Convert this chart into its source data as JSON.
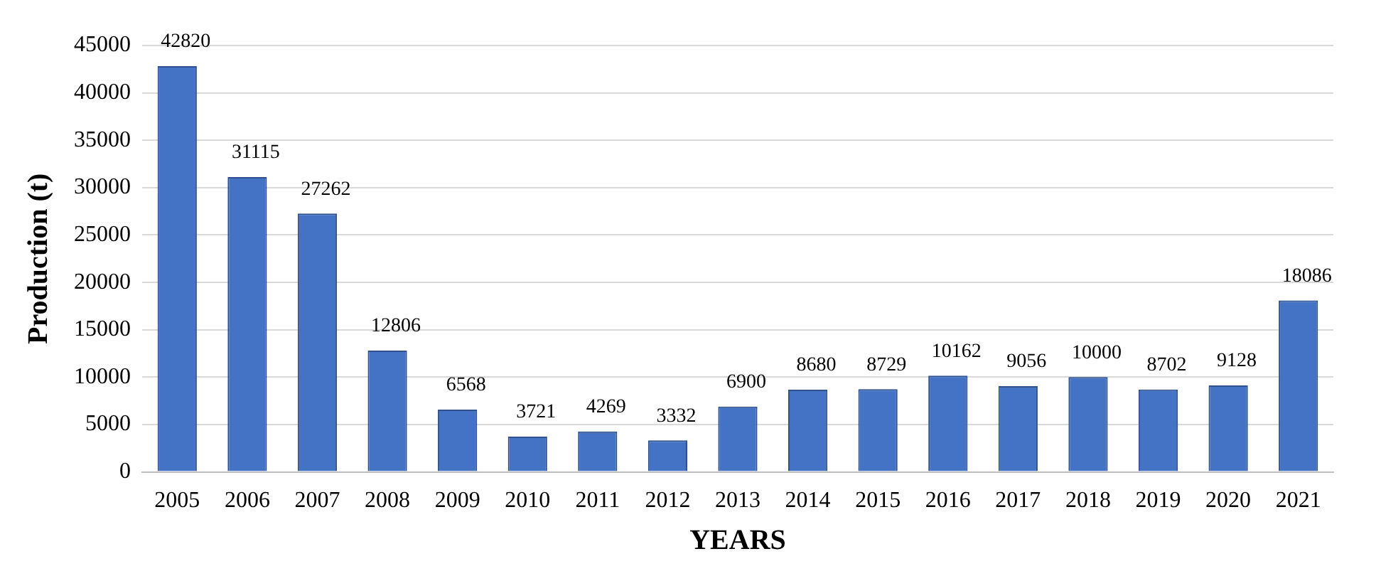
{
  "chart_data": {
    "type": "bar",
    "xlabel": "YEARS",
    "ylabel": "Production (t)",
    "categories": [
      "2005",
      "2006",
      "2007",
      "2008",
      "2009",
      "2010",
      "2011",
      "2012",
      "2013",
      "2014",
      "2015",
      "2016",
      "2017",
      "2018",
      "2019",
      "2020",
      "2021"
    ],
    "values": [
      42820,
      31115,
      27262,
      12806,
      6568,
      3721,
      4269,
      3332,
      6900,
      8680,
      8729,
      10162,
      9056,
      10000,
      8702,
      9128,
      18086
    ],
    "color": "#4472c4",
    "ylim": [
      0,
      45000
    ],
    "yticks": [
      0,
      5000,
      10000,
      15000,
      20000,
      25000,
      30000,
      35000,
      40000,
      45000
    ],
    "grid": "y",
    "data_labels": true
  }
}
